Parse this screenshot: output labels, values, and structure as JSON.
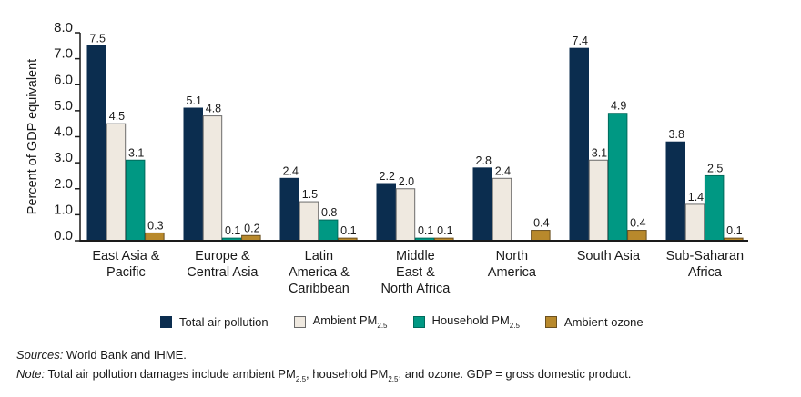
{
  "chart_data": {
    "type": "bar",
    "title": "",
    "xlabel": "",
    "ylabel": "Percent of GDP equivalent",
    "ylim": [
      0,
      8
    ],
    "yticks": [
      "0.0",
      "1.0",
      "2.0",
      "3.0",
      "4.0",
      "5.0",
      "6.0",
      "7.0",
      "8.0"
    ],
    "grid": false,
    "legend_position": "bottom",
    "categories": [
      [
        "East Asia &",
        "Pacific"
      ],
      [
        "Europe &",
        "Central Asia"
      ],
      [
        "Latin",
        "America &",
        "Caribbean"
      ],
      [
        "Middle",
        "East &",
        "North Africa"
      ],
      [
        "North",
        "America"
      ],
      [
        "South Asia"
      ],
      [
        "Sub-Saharan",
        "Africa"
      ]
    ],
    "series": [
      {
        "name": "Total air pollution",
        "sub": "",
        "color": "#0b2d4f",
        "border": "#0b2d4f",
        "values": [
          7.5,
          5.1,
          2.4,
          2.2,
          2.8,
          7.4,
          3.8
        ],
        "labels": [
          "7.5",
          "5.1",
          "2.4",
          "2.2",
          "2.8",
          "7.4",
          "3.8"
        ]
      },
      {
        "name": "Ambient PM",
        "sub": "2.5",
        "color": "#efe9e0",
        "border": "#6b6b6b",
        "values": [
          4.5,
          4.8,
          1.5,
          2.0,
          2.4,
          3.1,
          1.4
        ],
        "labels": [
          "4.5",
          "4.8",
          "1.5",
          "2.0",
          "2.4",
          "3.1",
          "1.4"
        ]
      },
      {
        "name": "Household PM",
        "sub": "2.5",
        "color": "#009883",
        "border": "#006b5c",
        "values": [
          3.1,
          0.1,
          0.8,
          0.1,
          0.0,
          4.9,
          2.5
        ],
        "labels": [
          "3.1",
          "0.1",
          "0.8",
          "0.1",
          "",
          "4.9",
          "2.5"
        ]
      },
      {
        "name": "Ambient ozone",
        "sub": "",
        "color": "#b8892c",
        "border": "#6b5020",
        "values": [
          0.3,
          0.2,
          0.1,
          0.1,
          0.4,
          0.4,
          0.1
        ],
        "labels": [
          "0.3",
          "0.2",
          "0.1",
          "0.1",
          "0.4",
          "0.4",
          "0.1"
        ]
      }
    ]
  },
  "notes": {
    "sources_label": "Sources:",
    "sources_text": " World Bank and IHME.",
    "note_label": "Note:",
    "note_part1": " Total air pollution damages include ambient PM",
    "note_sub1": "2.5",
    "note_part2": ", household PM",
    "note_sub2": "2.5",
    "note_part3": ", and ozone. GDP = gross domestic product."
  }
}
